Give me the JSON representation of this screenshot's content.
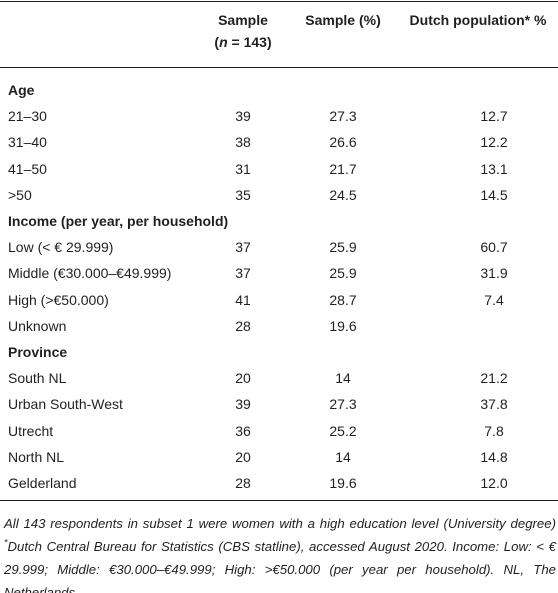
{
  "table": {
    "header": {
      "sample": "Sample",
      "n_open": "(",
      "n_symbol": "n",
      "n_close": " = 143)",
      "sample_pct": "Sample (%)",
      "dutch": "Dutch population* %"
    },
    "sections": [
      {
        "title": "Age",
        "rows": [
          [
            "21–30",
            "39",
            "27.3",
            "12.7"
          ],
          [
            "31–40",
            "38",
            "26.6",
            "12.2"
          ],
          [
            "41–50",
            "31",
            "21.7",
            "13.1"
          ],
          [
            ">50",
            "35",
            "24.5",
            "14.5"
          ]
        ]
      },
      {
        "title": "Income (per year, per household)",
        "rows": [
          [
            "Low (< € 29.999)",
            "37",
            "25.9",
            "60.7"
          ],
          [
            "Middle (€30.000–€49.999)",
            "37",
            "25.9",
            "31.9"
          ],
          [
            "High (>€50.000)",
            "41",
            "28.7",
            "7.4"
          ],
          [
            "Unknown",
            "28",
            "19.6"
          ]
        ]
      },
      {
        "title": "Province",
        "rows": [
          [
            "South NL",
            "20",
            "14",
            "21.2"
          ],
          [
            "Urban South-West",
            "39",
            "27.3",
            "37.8"
          ],
          [
            "Utrecht",
            "36",
            "25.2",
            "7.8"
          ],
          [
            "North NL",
            "20",
            "14",
            "14.8"
          ],
          [
            "Gelderland",
            "28",
            "19.6",
            "12.0"
          ]
        ]
      }
    ]
  },
  "footnote": [
    "All 143 respondents in subset 1 were women with a high education level (University degree) ",
    "*",
    "Dutch Central Bureau for Statistics (CBS statline), accessed August 2020. Income: Low: < € 29.999; Middle: €30.000–€49.999; High: >€50.000 (per year per household). NL, The Netherlands."
  ]
}
